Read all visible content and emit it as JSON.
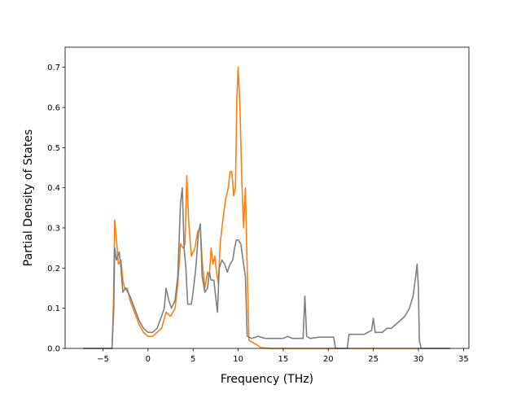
{
  "chart_data": {
    "type": "line",
    "title": "",
    "xlabel": "Frequency (THz)",
    "ylabel": "Partial Density of States",
    "xlim": [
      -9.2,
      35.6
    ],
    "ylim": [
      0,
      0.75
    ],
    "x_ticks": [
      -5,
      0,
      5,
      10,
      15,
      20,
      25,
      30,
      35
    ],
    "x_tick_labels": [
      "−5",
      "0",
      "5",
      "10",
      "15",
      "20",
      "25",
      "30",
      "35"
    ],
    "y_ticks": [
      0.0,
      0.1,
      0.2,
      0.3,
      0.4,
      0.5,
      0.6,
      0.7
    ],
    "y_tick_labels": [
      "0.0",
      "0.1",
      "0.2",
      "0.3",
      "0.4",
      "0.5",
      "0.6",
      "0.7"
    ],
    "grid": false,
    "legend": "none",
    "series": [
      {
        "color": "#ff7f0e",
        "points": [
          [
            -7.2,
            0.0
          ],
          [
            -4.0,
            0.0
          ],
          [
            -3.85,
            0.1
          ],
          [
            -3.7,
            0.32
          ],
          [
            -3.5,
            0.27
          ],
          [
            -3.3,
            0.21
          ],
          [
            -3.0,
            0.22
          ],
          [
            -2.8,
            0.17
          ],
          [
            -2.6,
            0.15
          ],
          [
            -2.3,
            0.15
          ],
          [
            -2.0,
            0.12
          ],
          [
            -1.5,
            0.09
          ],
          [
            -1.0,
            0.06
          ],
          [
            -0.5,
            0.04
          ],
          [
            0.0,
            0.03
          ],
          [
            0.5,
            0.03
          ],
          [
            1.0,
            0.04
          ],
          [
            1.5,
            0.05
          ],
          [
            2.0,
            0.09
          ],
          [
            2.5,
            0.08
          ],
          [
            3.0,
            0.1
          ],
          [
            3.3,
            0.16
          ],
          [
            3.6,
            0.26
          ],
          [
            3.9,
            0.25
          ],
          [
            4.1,
            0.26
          ],
          [
            4.3,
            0.43
          ],
          [
            4.5,
            0.32
          ],
          [
            4.8,
            0.23
          ],
          [
            5.0,
            0.24
          ],
          [
            5.2,
            0.25
          ],
          [
            5.5,
            0.29
          ],
          [
            5.8,
            0.3
          ],
          [
            6.0,
            0.22
          ],
          [
            6.3,
            0.15
          ],
          [
            6.6,
            0.19
          ],
          [
            6.8,
            0.18
          ],
          [
            7.0,
            0.25
          ],
          [
            7.2,
            0.21
          ],
          [
            7.4,
            0.23
          ],
          [
            7.6,
            0.19
          ],
          [
            7.8,
            0.16
          ],
          [
            8.0,
            0.26
          ],
          [
            8.3,
            0.32
          ],
          [
            8.6,
            0.37
          ],
          [
            8.9,
            0.4
          ],
          [
            9.1,
            0.44
          ],
          [
            9.3,
            0.44
          ],
          [
            9.5,
            0.38
          ],
          [
            9.7,
            0.4
          ],
          [
            9.85,
            0.62
          ],
          [
            10.0,
            0.7
          ],
          [
            10.2,
            0.6
          ],
          [
            10.4,
            0.42
          ],
          [
            10.6,
            0.3
          ],
          [
            10.8,
            0.4
          ],
          [
            11.0,
            0.2
          ],
          [
            11.2,
            0.02
          ],
          [
            12.0,
            0.01
          ],
          [
            12.5,
            0.002
          ],
          [
            13.5,
            0.0
          ],
          [
            33.5,
            0.0
          ]
        ]
      },
      {
        "color": "#7f7f7f",
        "points": [
          [
            -7.2,
            0.0
          ],
          [
            -4.0,
            0.0
          ],
          [
            -3.8,
            0.1
          ],
          [
            -3.7,
            0.25
          ],
          [
            -3.5,
            0.22
          ],
          [
            -3.2,
            0.24
          ],
          [
            -3.0,
            0.2
          ],
          [
            -2.8,
            0.14
          ],
          [
            -2.5,
            0.15
          ],
          [
            -2.0,
            0.13
          ],
          [
            -1.5,
            0.1
          ],
          [
            -1.0,
            0.07
          ],
          [
            -0.5,
            0.05
          ],
          [
            0.0,
            0.04
          ],
          [
            0.5,
            0.04
          ],
          [
            1.0,
            0.05
          ],
          [
            1.5,
            0.08
          ],
          [
            1.8,
            0.1
          ],
          [
            2.0,
            0.15
          ],
          [
            2.3,
            0.12
          ],
          [
            2.6,
            0.1
          ],
          [
            3.0,
            0.12
          ],
          [
            3.3,
            0.18
          ],
          [
            3.6,
            0.36
          ],
          [
            3.8,
            0.4
          ],
          [
            4.0,
            0.25
          ],
          [
            4.2,
            0.2
          ],
          [
            4.4,
            0.11
          ],
          [
            4.8,
            0.11
          ],
          [
            5.0,
            0.14
          ],
          [
            5.3,
            0.2
          ],
          [
            5.6,
            0.29
          ],
          [
            5.8,
            0.31
          ],
          [
            6.0,
            0.18
          ],
          [
            6.3,
            0.14
          ],
          [
            6.6,
            0.15
          ],
          [
            6.8,
            0.19
          ],
          [
            7.0,
            0.17
          ],
          [
            7.3,
            0.17
          ],
          [
            7.5,
            0.13
          ],
          [
            7.7,
            0.09
          ],
          [
            7.9,
            0.2
          ],
          [
            8.2,
            0.22
          ],
          [
            8.5,
            0.21
          ],
          [
            8.8,
            0.19
          ],
          [
            9.1,
            0.21
          ],
          [
            9.4,
            0.22
          ],
          [
            9.6,
            0.25
          ],
          [
            9.8,
            0.27
          ],
          [
            10.0,
            0.27
          ],
          [
            10.3,
            0.26
          ],
          [
            10.6,
            0.21
          ],
          [
            10.8,
            0.18
          ],
          [
            11.0,
            0.03
          ],
          [
            11.5,
            0.025
          ],
          [
            12.2,
            0.03
          ],
          [
            13.0,
            0.025
          ],
          [
            15.0,
            0.025
          ],
          [
            15.5,
            0.03
          ],
          [
            16.0,
            0.025
          ],
          [
            17.2,
            0.025
          ],
          [
            17.4,
            0.13
          ],
          [
            17.6,
            0.03
          ],
          [
            18.0,
            0.025
          ],
          [
            19.0,
            0.028
          ],
          [
            20.0,
            0.028
          ],
          [
            20.6,
            0.028
          ],
          [
            20.8,
            0.0
          ],
          [
            22.1,
            0.0
          ],
          [
            22.3,
            0.035
          ],
          [
            23.0,
            0.035
          ],
          [
            24.0,
            0.035
          ],
          [
            24.8,
            0.045
          ],
          [
            25.0,
            0.075
          ],
          [
            25.2,
            0.04
          ],
          [
            26.0,
            0.04
          ],
          [
            26.5,
            0.05
          ],
          [
            27.0,
            0.05
          ],
          [
            27.5,
            0.06
          ],
          [
            28.0,
            0.07
          ],
          [
            28.5,
            0.08
          ],
          [
            29.0,
            0.1
          ],
          [
            29.4,
            0.13
          ],
          [
            29.7,
            0.18
          ],
          [
            29.85,
            0.21
          ],
          [
            30.0,
            0.15
          ],
          [
            30.1,
            0.02
          ],
          [
            30.3,
            0.0
          ],
          [
            33.5,
            0.0
          ]
        ]
      }
    ]
  }
}
